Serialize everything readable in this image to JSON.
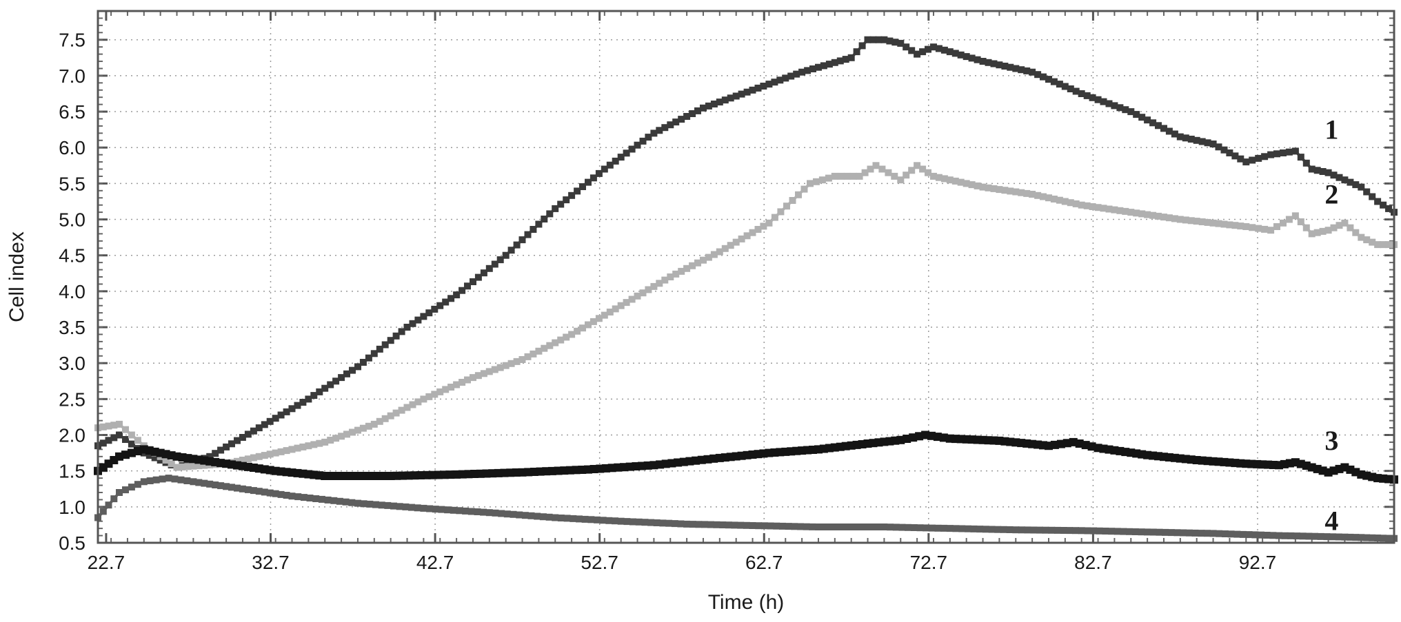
{
  "chart_data": {
    "type": "line",
    "xlabel": "Time (h)",
    "ylabel": "Cell index",
    "xlim": [
      22.2,
      101.0
    ],
    "ylim": [
      0.5,
      7.9
    ],
    "x_ticks": [
      "22.7",
      "32.7",
      "42.7",
      "52.7",
      "62.7",
      "72.7",
      "82.7",
      "92.7"
    ],
    "y_ticks": [
      "0.5",
      "1.0",
      "1.5",
      "2.0",
      "2.5",
      "3.0",
      "3.5",
      "4.0",
      "4.5",
      "5.0",
      "5.5",
      "6.0",
      "6.5",
      "7.0",
      "7.5"
    ],
    "grid": true,
    "series": [
      {
        "name": "1",
        "color": "#3a3a3a",
        "x": [
          22.2,
          23.5,
          25.0,
          27.0,
          29.0,
          32.0,
          35.0,
          38.0,
          41.0,
          44.0,
          47.0,
          50.0,
          53.0,
          56.0,
          59.0,
          62.0,
          65.0,
          68.0,
          69.0,
          70.0,
          71.0,
          72.0,
          73.0,
          76.0,
          79.0,
          82.0,
          85.0,
          88.0,
          90.0,
          92.0,
          93.5,
          95.0,
          96.0,
          97.0,
          98.0,
          99.0,
          100.0,
          101.0
        ],
        "y": [
          1.85,
          2.0,
          1.75,
          1.55,
          1.7,
          2.1,
          2.5,
          2.95,
          3.5,
          3.95,
          4.5,
          5.15,
          5.7,
          6.2,
          6.55,
          6.8,
          7.05,
          7.25,
          7.5,
          7.5,
          7.45,
          7.3,
          7.4,
          7.2,
          7.05,
          6.75,
          6.5,
          6.15,
          6.05,
          5.8,
          5.9,
          5.95,
          5.7,
          5.65,
          5.55,
          5.45,
          5.25,
          5.1
        ]
      },
      {
        "name": "2",
        "color": "#b0b0b0",
        "x": [
          22.2,
          23.5,
          25.0,
          27.0,
          30.0,
          33.0,
          36.0,
          39.0,
          42.0,
          45.0,
          48.0,
          51.0,
          54.0,
          57.0,
          60.0,
          63.0,
          65.5,
          67.0,
          68.5,
          69.5,
          71.0,
          72.0,
          73.0,
          76.0,
          79.0,
          82.0,
          85.0,
          88.0,
          90.0,
          92.0,
          93.5,
          95.0,
          96.0,
          97.0,
          98.0,
          99.0,
          100.0,
          101.0
        ],
        "y": [
          2.1,
          2.15,
          1.85,
          1.55,
          1.6,
          1.75,
          1.9,
          2.15,
          2.5,
          2.8,
          3.05,
          3.4,
          3.8,
          4.2,
          4.55,
          4.95,
          5.5,
          5.6,
          5.6,
          5.75,
          5.55,
          5.75,
          5.6,
          5.45,
          5.35,
          5.2,
          5.1,
          5.0,
          4.95,
          4.9,
          4.85,
          5.05,
          4.8,
          4.85,
          4.95,
          4.75,
          4.65,
          4.65
        ]
      },
      {
        "name": "3",
        "color": "#141414",
        "x": [
          22.2,
          23.5,
          25.0,
          27.0,
          30.0,
          33.0,
          36.0,
          40.0,
          44.0,
          48.0,
          52.0,
          56.0,
          60.0,
          63.0,
          66.0,
          69.0,
          71.0,
          72.5,
          74.0,
          77.0,
          80.0,
          81.5,
          83.0,
          86.0,
          89.0,
          92.0,
          94.0,
          95.0,
          96.0,
          97.0,
          98.0,
          99.0,
          100.0,
          101.0
        ],
        "y": [
          1.5,
          1.7,
          1.8,
          1.7,
          1.6,
          1.5,
          1.43,
          1.43,
          1.45,
          1.48,
          1.52,
          1.58,
          1.68,
          1.75,
          1.8,
          1.88,
          1.93,
          2.0,
          1.95,
          1.92,
          1.85,
          1.9,
          1.82,
          1.72,
          1.65,
          1.6,
          1.58,
          1.62,
          1.55,
          1.48,
          1.55,
          1.45,
          1.4,
          1.38
        ]
      },
      {
        "name": "4",
        "color": "#5e5e5e",
        "x": [
          22.2,
          23.5,
          25.0,
          26.5,
          28.0,
          31.0,
          34.0,
          38.0,
          42.0,
          46.0,
          50.0,
          54.0,
          58.0,
          62.0,
          66.0,
          70.0,
          74.0,
          78.0,
          82.0,
          86.0,
          90.0,
          94.0,
          98.0,
          101.0
        ],
        "y": [
          0.85,
          1.2,
          1.35,
          1.4,
          1.35,
          1.25,
          1.15,
          1.05,
          0.98,
          0.92,
          0.85,
          0.8,
          0.76,
          0.74,
          0.72,
          0.72,
          0.7,
          0.68,
          0.67,
          0.65,
          0.63,
          0.6,
          0.58,
          0.56
        ]
      }
    ]
  }
}
